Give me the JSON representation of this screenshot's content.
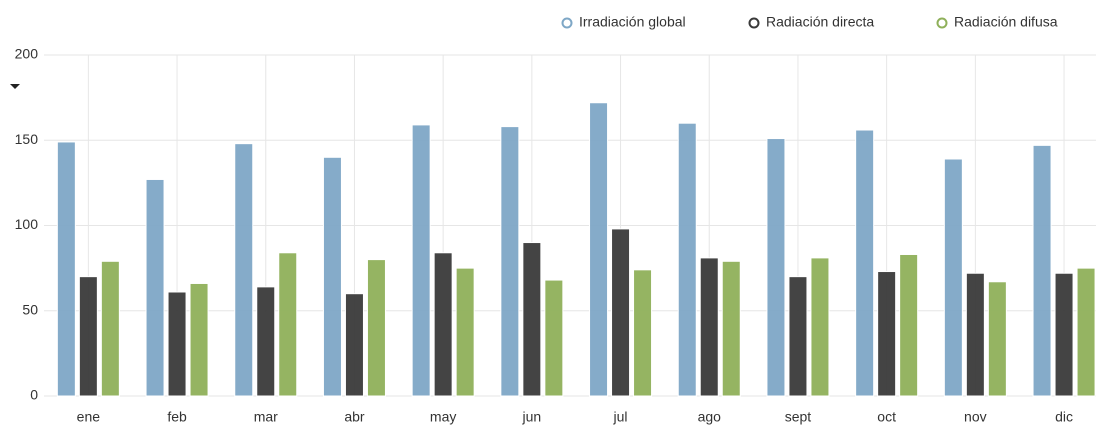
{
  "chart_data": {
    "type": "bar",
    "categories": [
      "ene",
      "feb",
      "mar",
      "abr",
      "may",
      "jun",
      "jul",
      "ago",
      "sept",
      "oct",
      "nov",
      "dic"
    ],
    "series": [
      {
        "name": "Irradiación global",
        "color": "#7ea7c6",
        "values": [
          149,
          127,
          148,
          140,
          159,
          158,
          172,
          160,
          151,
          156,
          139,
          147
        ]
      },
      {
        "name": "Radiación directa",
        "color": "#3a3a3a",
        "values": [
          70,
          61,
          64,
          60,
          84,
          90,
          98,
          81,
          70,
          73,
          72,
          72
        ]
      },
      {
        "name": "Radiación difusa",
        "color": "#8fb05a",
        "values": [
          79,
          66,
          84,
          80,
          75,
          68,
          74,
          79,
          81,
          83,
          67,
          75
        ]
      }
    ],
    "ylim": [
      0,
      200
    ],
    "yticks": [
      0,
      50,
      100,
      150,
      200
    ],
    "grid": true,
    "legend": "top-right"
  }
}
